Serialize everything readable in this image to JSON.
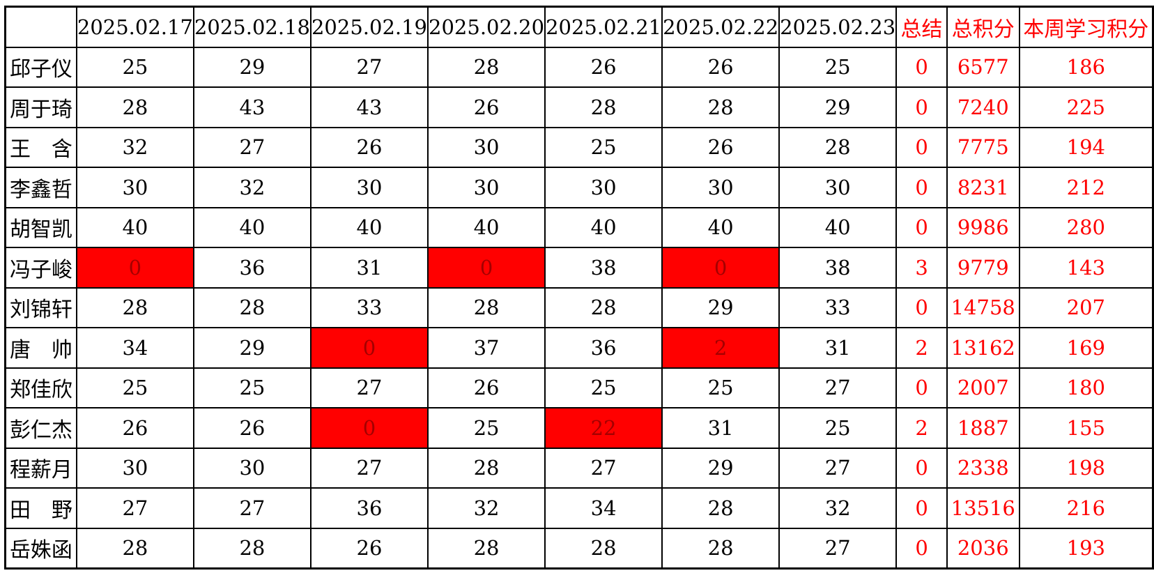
{
  "colors": {
    "accent_red": "#ff0000",
    "highlight_fill": "#ff0000",
    "highlight_text": "#a40000",
    "body_text": "#000000",
    "border": "#000000"
  },
  "chart_data": {
    "type": "table",
    "title": "",
    "corner_label": "",
    "date_columns": [
      "2025.02.17",
      "2025.02.18",
      "2025.02.19",
      "2025.02.20",
      "2025.02.21",
      "2025.02.22",
      "2025.02.23"
    ],
    "summary_columns": [
      "总结",
      "总积分",
      "本周学习积分"
    ],
    "rows": [
      {
        "name": "邱子仪",
        "daily": [
          25,
          29,
          27,
          28,
          26,
          26,
          25
        ],
        "highlight_indices": [],
        "summary": 0,
        "total": 6577,
        "week": 186
      },
      {
        "name": "周于琦",
        "daily": [
          28,
          43,
          43,
          26,
          28,
          28,
          29
        ],
        "highlight_indices": [],
        "summary": 0,
        "total": 7240,
        "week": 225
      },
      {
        "name": "王　含",
        "daily": [
          32,
          27,
          26,
          30,
          25,
          26,
          28
        ],
        "highlight_indices": [],
        "summary": 0,
        "total": 7775,
        "week": 194
      },
      {
        "name": "李鑫哲",
        "daily": [
          30,
          32,
          30,
          30,
          30,
          30,
          30
        ],
        "highlight_indices": [],
        "summary": 0,
        "total": 8231,
        "week": 212
      },
      {
        "name": "胡智凯",
        "daily": [
          40,
          40,
          40,
          40,
          40,
          40,
          40
        ],
        "highlight_indices": [],
        "summary": 0,
        "total": 9986,
        "week": 280
      },
      {
        "name": "冯子峻",
        "daily": [
          0,
          36,
          31,
          0,
          38,
          0,
          38
        ],
        "highlight_indices": [
          0,
          3,
          5
        ],
        "summary": 3,
        "total": 9779,
        "week": 143
      },
      {
        "name": "刘锦轩",
        "daily": [
          28,
          28,
          33,
          28,
          28,
          29,
          33
        ],
        "highlight_indices": [],
        "summary": 0,
        "total": 14758,
        "week": 207
      },
      {
        "name": "唐　帅",
        "daily": [
          34,
          29,
          0,
          37,
          36,
          2,
          31
        ],
        "highlight_indices": [
          2,
          5
        ],
        "summary": 2,
        "total": 13162,
        "week": 169
      },
      {
        "name": "郑佳欣",
        "daily": [
          25,
          25,
          27,
          26,
          25,
          25,
          27
        ],
        "highlight_indices": [],
        "summary": 0,
        "total": 2007,
        "week": 180
      },
      {
        "name": "彭仁杰",
        "daily": [
          26,
          26,
          0,
          25,
          22,
          31,
          25
        ],
        "highlight_indices": [
          2,
          4
        ],
        "summary": 2,
        "total": 1887,
        "week": 155
      },
      {
        "name": "程薪月",
        "daily": [
          30,
          30,
          27,
          28,
          27,
          29,
          27
        ],
        "highlight_indices": [],
        "summary": 0,
        "total": 2338,
        "week": 198
      },
      {
        "name": "田　野",
        "daily": [
          27,
          27,
          36,
          32,
          34,
          28,
          32
        ],
        "highlight_indices": [],
        "summary": 0,
        "total": 13516,
        "week": 216
      },
      {
        "name": "岳姝函",
        "daily": [
          28,
          28,
          26,
          28,
          28,
          28,
          27
        ],
        "highlight_indices": [],
        "summary": 0,
        "total": 2036,
        "week": 193
      }
    ],
    "layout": {
      "name_col_width": 111,
      "date_col_width": 163,
      "summary_col_widths": [
        82,
        112,
        200
      ]
    }
  }
}
